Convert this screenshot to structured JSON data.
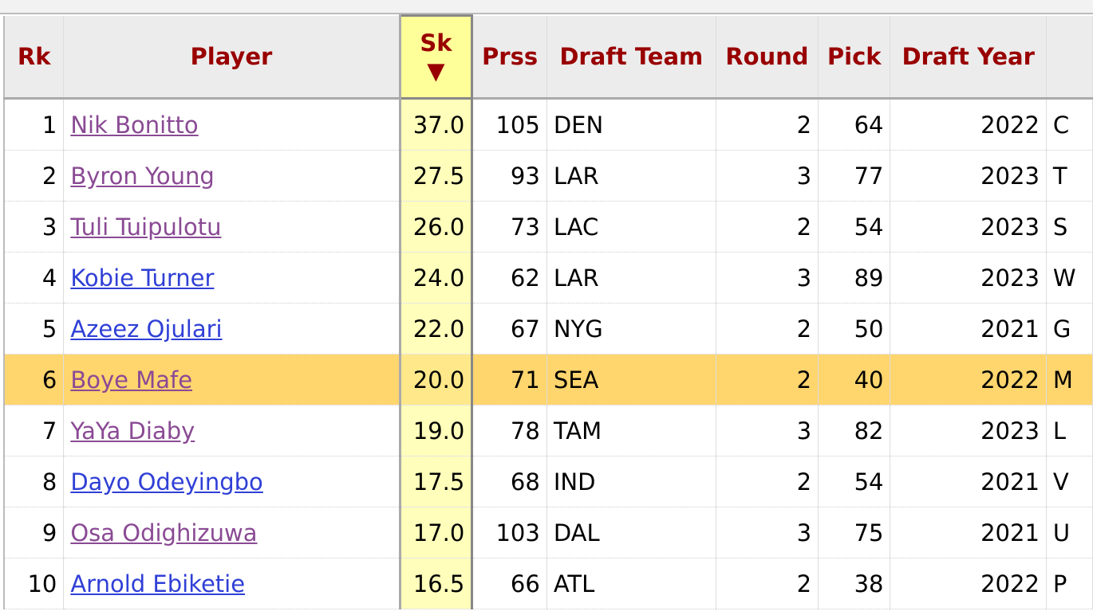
{
  "table": {
    "headers": [
      "Rk",
      "Player",
      "Sk",
      "Prss",
      "Draft Team",
      "Round",
      "Pick",
      "Draft Year"
    ],
    "sorted_column": 2,
    "sort_indicator": "▼",
    "highlight_row": 5,
    "visited": [
      true,
      true,
      true,
      false,
      false,
      true,
      true,
      false,
      true,
      false
    ],
    "rows": [
      [
        "1",
        "Nik Bonitto",
        "37.0",
        "105",
        "DEN",
        "2",
        "64",
        "2022",
        "C"
      ],
      [
        "2",
        "Byron Young",
        "27.5",
        "93",
        "LAR",
        "3",
        "77",
        "2023",
        "T"
      ],
      [
        "3",
        "Tuli Tuipulotu",
        "26.0",
        "73",
        "LAC",
        "2",
        "54",
        "2023",
        "S"
      ],
      [
        "4",
        "Kobie Turner",
        "24.0",
        "62",
        "LAR",
        "3",
        "89",
        "2023",
        "W"
      ],
      [
        "5",
        "Azeez Ojulari",
        "22.0",
        "67",
        "NYG",
        "2",
        "50",
        "2021",
        "G"
      ],
      [
        "6",
        "Boye Mafe",
        "20.0",
        "71",
        "SEA",
        "2",
        "40",
        "2022",
        "M"
      ],
      [
        "7",
        "YaYa Diaby",
        "19.0",
        "78",
        "TAM",
        "3",
        "82",
        "2023",
        "L"
      ],
      [
        "8",
        "Dayo Odeyingbo",
        "17.5",
        "68",
        "IND",
        "2",
        "54",
        "2021",
        "V"
      ],
      [
        "9",
        "Osa Odighizuwa",
        "17.0",
        "103",
        "DAL",
        "3",
        "75",
        "2021",
        "U"
      ],
      [
        "10",
        "Arnold Ebiketie",
        "16.5",
        "66",
        "ATL",
        "2",
        "38",
        "2022",
        "P"
      ]
    ]
  }
}
